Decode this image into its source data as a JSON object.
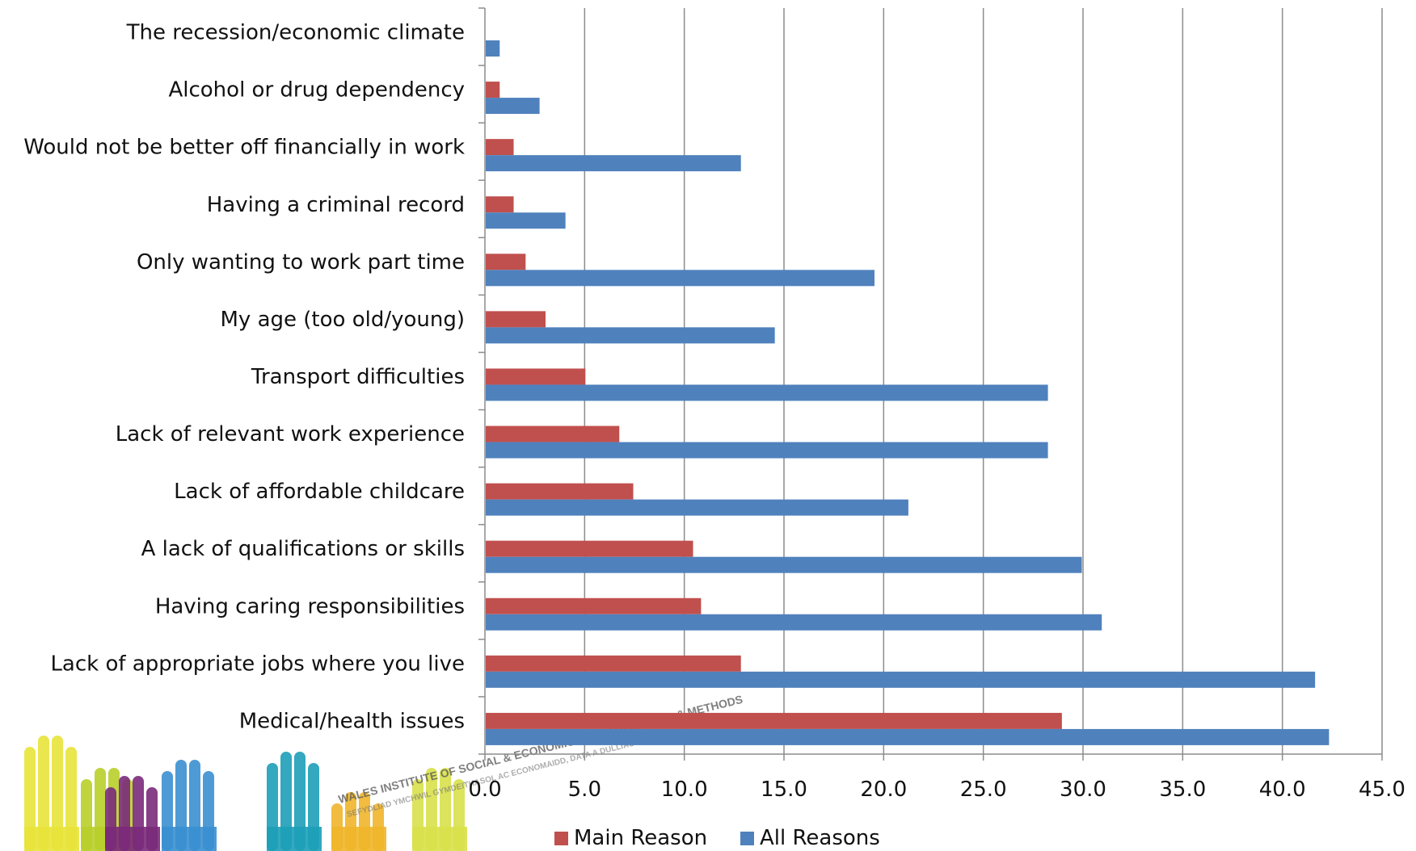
{
  "chart_data": {
    "type": "bar",
    "orientation": "horizontal",
    "categories": [
      "The recession/economic climate",
      "Alcohol or drug dependency",
      "Would not be better off  financially in work",
      "Having a criminal record",
      "Only wanting to work part time",
      "My age (too old/young)",
      "Transport difficulties",
      "Lack of relevant work experience",
      "Lack of affordable childcare",
      "A lack of qualifications or skills",
      "Having caring responsibilities",
      "Lack of appropriate jobs where you live",
      "Medical/health issues"
    ],
    "series": [
      {
        "name": "Main Reason",
        "color": "#c0504d",
        "values": [
          0.0,
          0.7,
          1.4,
          1.4,
          2.0,
          3.0,
          5.0,
          6.7,
          7.4,
          10.4,
          10.8,
          12.8,
          28.9
        ]
      },
      {
        "name": "All Reasons",
        "color": "#4f81bd",
        "values": [
          0.7,
          2.7,
          12.8,
          4.0,
          19.5,
          14.5,
          28.2,
          28.2,
          21.2,
          29.9,
          30.9,
          41.6,
          42.3
        ]
      }
    ],
    "ticks": [
      "0.0",
      "5.0",
      "10.0",
      "15.0",
      "20.0",
      "25.0",
      "30.0",
      "35.0",
      "40.0",
      "45.0"
    ],
    "xlim": [
      0,
      45
    ],
    "title": "",
    "xlabel": "",
    "ylabel": "",
    "grid": "vertical",
    "legend": "bottom"
  },
  "watermark": {
    "line1": "WALES INSTITUTE OF SOCIAL & ECONOMIC RESEARCH, DATA & METHODS",
    "line2": "SEFYDLIAD YMCHWIL GYMDEITHASOL AC ECONOMAIDD, DATA A DULLIAU CYMRU",
    "hand_colors": [
      "#e8e33a",
      "#b8cf2a",
      "#7a2a7a",
      "#3a8fd0",
      "#1d9fb8",
      "#f0b52a",
      "#d8e04a"
    ]
  }
}
